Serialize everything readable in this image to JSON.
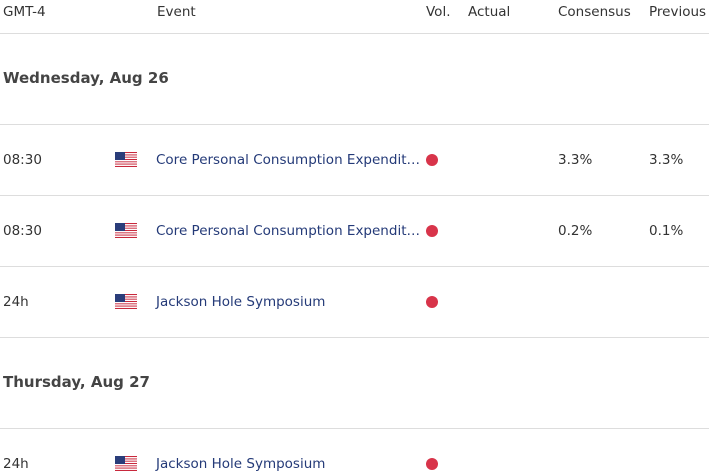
{
  "header": [
    "GMT-4",
    "Event",
    "Vol.",
    "Actual",
    "Consensus",
    "Previous"
  ],
  "days": [
    {
      "title": "Wednesday, Aug 26",
      "events": [
        {
          "time": "08:30",
          "event": "Core Personal Consumption Expendit…",
          "consensus": "3.3%",
          "previous": "3.3%"
        },
        {
          "time": "08:30",
          "event": "Core Personal Consumption Expendit…",
          "consensus": "0.2%",
          "previous": "0.1%"
        },
        {
          "time": "24h",
          "event": "Jackson Hole Symposium"
        }
      ]
    },
    {
      "title": "Thursday, Aug 27",
      "events": [
        {
          "time": "24h",
          "event": "Jackson Hole Symposium"
        }
      ]
    }
  ]
}
